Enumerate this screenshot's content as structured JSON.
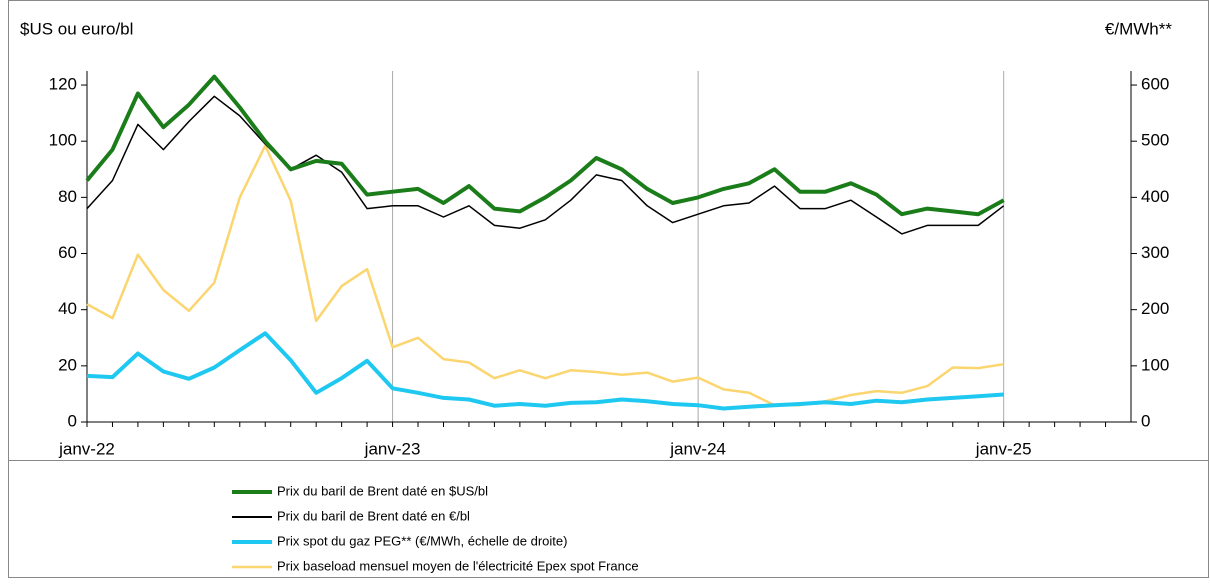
{
  "chart_data": {
    "type": "line",
    "ylabel": "$US ou euro/bl",
    "y2label": "€/MWh**",
    "categories": [
      "janv-22",
      null,
      null,
      null,
      null,
      null,
      null,
      null,
      null,
      null,
      null,
      null,
      "janv-23",
      null,
      null,
      null,
      null,
      null,
      null,
      null,
      null,
      null,
      null,
      null,
      "janv-24",
      null,
      null,
      null,
      null,
      null,
      null,
      null,
      null,
      null,
      null,
      null,
      "janv-25",
      null,
      null,
      null,
      null
    ],
    "ylim": [
      0,
      125
    ],
    "yticks": [
      0,
      20,
      40,
      60,
      80,
      100,
      120
    ],
    "y2lim": [
      0,
      625
    ],
    "y2ticks": [
      0,
      100,
      200,
      300,
      400,
      500,
      600
    ],
    "xgrid": true,
    "series": [
      {
        "name": "Prix du baril de Brent daté en $US/bl",
        "color": "#1a7d1a",
        "width": 4,
        "values": [
          86,
          97,
          117,
          105,
          113,
          123,
          112,
          100,
          90,
          93,
          92,
          81,
          82,
          83,
          78,
          84,
          76,
          75,
          80,
          86,
          94,
          90,
          83,
          78,
          80,
          83,
          85,
          90,
          82,
          82,
          85,
          81,
          74,
          76,
          75,
          74,
          79,
          null,
          null,
          null,
          null
        ]
      },
      {
        "name": "Prix du baril de Brent daté en €/bl",
        "color": "#000000",
        "width": 1.5,
        "values": [
          76,
          86,
          106,
          97,
          107,
          116,
          109,
          99,
          90,
          95,
          89,
          76,
          77,
          77,
          73,
          77,
          70,
          69,
          72,
          79,
          88,
          86,
          77,
          71,
          74,
          77,
          78,
          84,
          76,
          76,
          79,
          73,
          67,
          70,
          70,
          70,
          77,
          null,
          null,
          null,
          null
        ]
      },
      {
        "name": "Prix spot du gaz PEG** (€/MWh, échelle de droite)",
        "color": "#1fc8f0",
        "width": 4,
        "axis": "y2",
        "values": [
          82,
          80,
          122,
          90,
          77,
          97,
          128,
          158,
          110,
          52,
          78,
          109,
          60,
          52,
          43,
          40,
          29,
          32,
          29,
          34,
          35,
          40,
          37,
          32,
          30,
          24,
          27,
          30,
          32,
          35,
          32,
          38,
          35,
          40,
          43,
          46,
          49,
          null,
          null,
          null,
          null
        ]
      },
      {
        "name": "Prix baseload mensuel moyen de l'électricité Epex spot France",
        "color": "#fbd56f",
        "width": 2.5,
        "axis": "y2",
        "values": [
          210,
          185,
          298,
          235,
          198,
          248,
          400,
          492,
          394,
          180,
          242,
          272,
          133,
          150,
          112,
          106,
          78,
          92,
          78,
          92,
          89,
          84,
          88,
          72,
          79,
          58,
          52,
          30,
          30,
          37,
          48,
          55,
          52,
          64,
          97,
          96,
          103,
          null,
          null,
          null,
          null
        ]
      }
    ]
  }
}
